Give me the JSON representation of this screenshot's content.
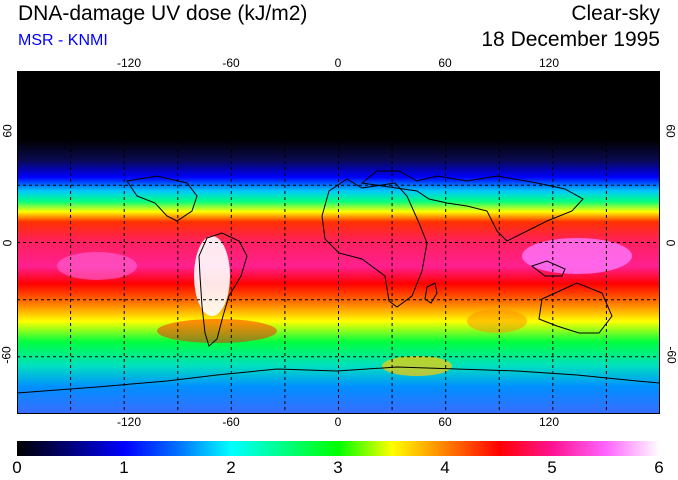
{
  "header": {
    "title": "DNA-damage UV dose (kJ/m2)",
    "source": "MSR - KNMI",
    "sky_condition": "Clear-sky",
    "date": "18 December 1995"
  },
  "map": {
    "lon_ticks": [
      "-120",
      "-60",
      "0",
      "60",
      "120"
    ],
    "lon_values": [
      -120,
      -60,
      0,
      60,
      120
    ],
    "lat_ticks": [
      "60",
      "0",
      "-60"
    ],
    "lat_values": [
      60,
      0,
      -60
    ],
    "grid_lon": [
      -150,
      -120,
      -90,
      -60,
      -30,
      0,
      30,
      60,
      90,
      120,
      150
    ],
    "grid_lat": [
      -60,
      -30,
      0,
      30,
      60
    ],
    "extent": {
      "lon": [
        -180,
        180
      ],
      "lat": [
        -90,
        90
      ]
    }
  },
  "colorbar": {
    "labels": [
      "0",
      "1",
      "2",
      "3",
      "4",
      "5",
      "6"
    ],
    "min": 0,
    "max": 6,
    "stops": [
      {
        "value": 0,
        "color": "#000000"
      },
      {
        "value": 0.5,
        "color": "#00007a"
      },
      {
        "value": 1,
        "color": "#0000ff"
      },
      {
        "value": 1.5,
        "color": "#0070ff"
      },
      {
        "value": 2,
        "color": "#00ffff"
      },
      {
        "value": 2.5,
        "color": "#00ff80"
      },
      {
        "value": 3,
        "color": "#00ff00"
      },
      {
        "value": 3.5,
        "color": "#ffff00"
      },
      {
        "value": 4,
        "color": "#ff8000"
      },
      {
        "value": 4.5,
        "color": "#ff0000"
      },
      {
        "value": 5,
        "color": "#ff1493"
      },
      {
        "value": 5.5,
        "color": "#ff66ff"
      },
      {
        "value": 6,
        "color": "#ffffff"
      }
    ]
  },
  "colors": {
    "subtitle": "#0000ff",
    "grid": "#000000",
    "coast": "#000000"
  }
}
